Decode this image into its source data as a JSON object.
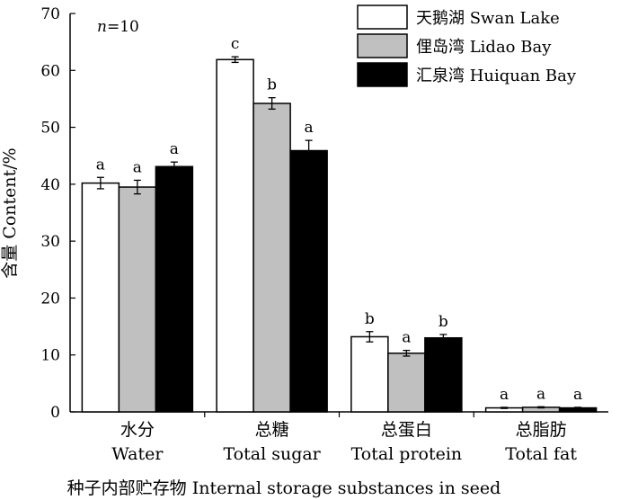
{
  "chart_data": {
    "type": "bar",
    "annotation_text": "n=10",
    "annotation_italic": "n",
    "annotation_rest": "=10",
    "ylabel": "含量 Content/%",
    "xlabel": "种子内部贮存物 Internal storage substances in seed",
    "ylim": [
      0,
      70
    ],
    "yticks": [
      0,
      10,
      20,
      30,
      40,
      50,
      60,
      70
    ],
    "categories": [
      {
        "zh": "水分",
        "en": "Water"
      },
      {
        "zh": "总糖",
        "en": "Total sugar"
      },
      {
        "zh": "总蛋白",
        "en": "Total protein"
      },
      {
        "zh": "总脂肪",
        "en": "Total fat"
      }
    ],
    "series": [
      {
        "name": "天鹅湖 Swan Lake",
        "color": "#ffffff",
        "values": [
          40.2,
          61.9,
          13.2,
          0.7
        ],
        "errors": [
          1.0,
          0.5,
          0.9,
          0.1
        ],
        "letters": [
          "a",
          "c",
          "b",
          "a"
        ]
      },
      {
        "name": "俚岛湾 Lidao Bay",
        "color": "#c0c0c0",
        "values": [
          39.5,
          54.2,
          10.3,
          0.8
        ],
        "errors": [
          1.2,
          1.0,
          0.5,
          0.1
        ],
        "letters": [
          "a",
          "b",
          "a",
          "a"
        ]
      },
      {
        "name": "汇泉湾 Huiquan Bay",
        "color": "#000000",
        "values": [
          43.1,
          45.9,
          13.0,
          0.7
        ],
        "errors": [
          0.8,
          1.8,
          0.6,
          0.1
        ],
        "letters": [
          "a",
          "a",
          "b",
          "a"
        ]
      }
    ],
    "legend_position": "top-right",
    "grid": false
  }
}
